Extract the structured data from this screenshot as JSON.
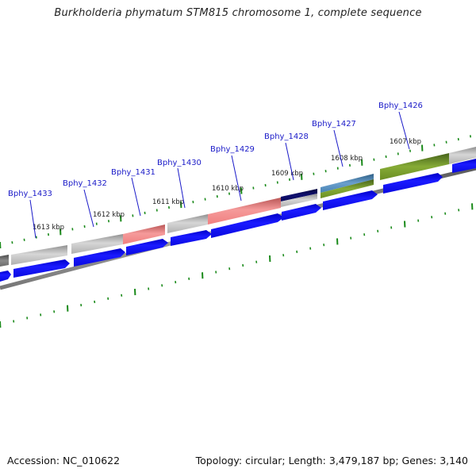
{
  "title": "Burkholderia phymatum STM815 chromosome 1, complete sequence",
  "footer": {
    "accession": "Accession: NC_010622",
    "summary": "Topology: circular; Length: 3,479,187 bp; Genes: 3,140"
  },
  "genes": [
    {
      "label": "Bphy_1433"
    },
    {
      "label": "Bphy_1432"
    },
    {
      "label": "Bphy_1431"
    },
    {
      "label": "Bphy_1430"
    },
    {
      "label": "Bphy_1429"
    },
    {
      "label": "Bphy_1428"
    },
    {
      "label": "Bphy_1427"
    },
    {
      "label": "Bphy_1426"
    }
  ],
  "kbp_labels": [
    "1613 kbp",
    "1612 kbp",
    "1611 kbp",
    "1610 kbp",
    "1609 kbp",
    "1608 kbp",
    "1607 kbp"
  ],
  "colors": {
    "gene_label": "#1a1ac8",
    "cds_arrow": "#0b0bf2",
    "tick": "#1a8a1a",
    "backbone": "#888888",
    "feature_grey": "#b9b9b9",
    "feature_pink": "#f08080",
    "feature_navy": "#0a0a6a",
    "feature_steelblue": "#4682b4",
    "feature_olive": "#6b8e23",
    "feature_darkgrey": "#777777"
  }
}
